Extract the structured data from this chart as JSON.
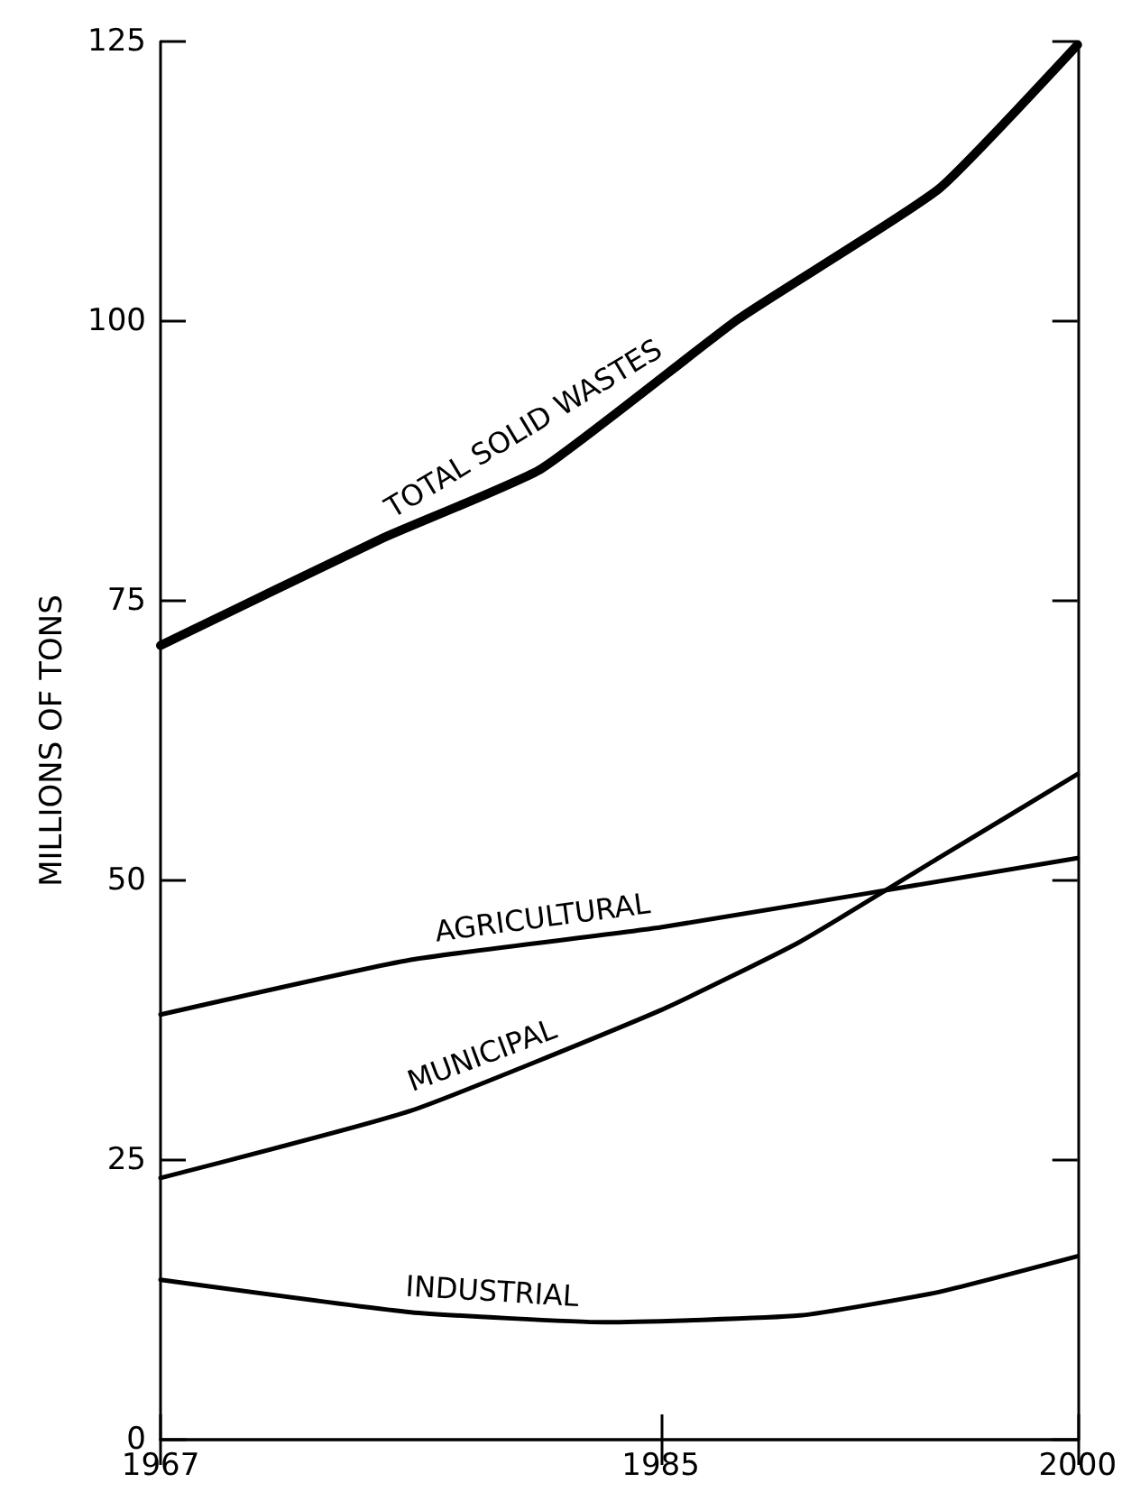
{
  "chart_data": {
    "type": "line",
    "ylabel": "MILLIONS OF TONS",
    "xlim": [
      1967,
      2000
    ],
    "xticks": [
      1967,
      1985,
      2000
    ],
    "ylim": [
      0,
      125
    ],
    "yticks": [
      0,
      25,
      50,
      75,
      100,
      125
    ],
    "grid": false,
    "legend": false,
    "marker": "none",
    "line_style": "solid",
    "series": [
      {
        "name": "TOTAL SOLID WASTES",
        "color": "#000000",
        "x": [
          1967,
          1975,
          1980.7,
          1987.8,
          1995,
          2000
        ],
        "values": [
          71,
          80.6,
          86.8,
          100.2,
          111.8,
          124.7
        ]
      },
      {
        "name": "AGRICULTURAL",
        "color": "#000000",
        "x": [
          1967,
          1976,
          1985,
          2000
        ],
        "values": [
          38,
          42.9,
          45.8,
          52
        ]
      },
      {
        "name": "MUNICIPAL",
        "color": "#000000",
        "x": [
          1967,
          1976,
          1985,
          1990,
          1995,
          2000
        ],
        "values": [
          23.4,
          29.4,
          38.4,
          44.5,
          52,
          59.5
        ]
      },
      {
        "name": "INDUSTRIAL",
        "color": "#000000",
        "x": [
          1967,
          1976,
          1983,
          1990,
          1995,
          2000
        ],
        "values": [
          14.3,
          11.4,
          10.5,
          11.1,
          13.2,
          16.4
        ]
      }
    ]
  }
}
